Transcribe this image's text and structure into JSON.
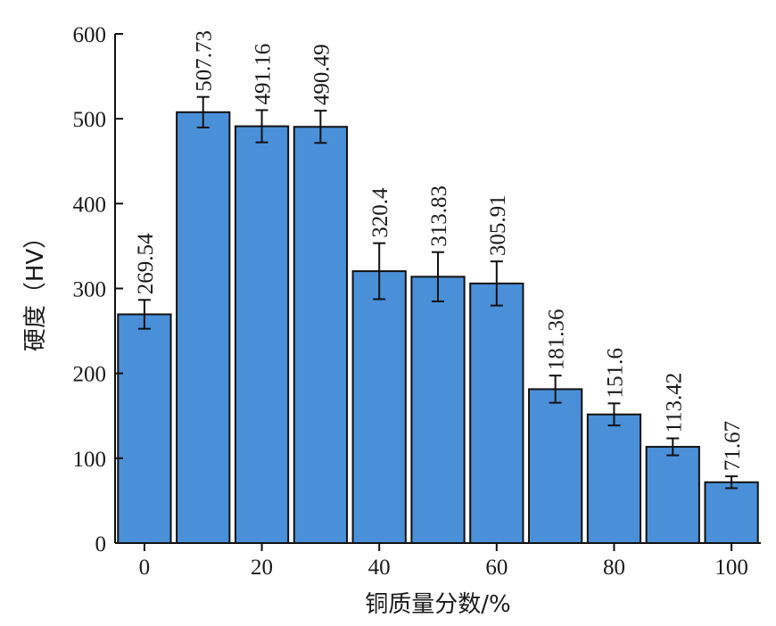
{
  "chart_data": {
    "type": "bar",
    "xlabel": "铜质量分数/%",
    "ylabel": "硬度（HV）",
    "x": [
      0,
      10,
      20,
      30,
      40,
      50,
      60,
      70,
      80,
      90,
      100
    ],
    "values": [
      269.54,
      507.73,
      491.16,
      490.49,
      320.4,
      313.83,
      305.91,
      181.36,
      151.6,
      113.42,
      71.67
    ],
    "value_labels": [
      "269.54",
      "507.73",
      "491.16",
      "490.49",
      "320.4",
      "313.83",
      "305.91",
      "181.36",
      "151.6",
      "113.42",
      "71.67"
    ],
    "errors": [
      17,
      18,
      19,
      19,
      33,
      29,
      26,
      16,
      13,
      10,
      7
    ],
    "xticks": [
      0,
      20,
      40,
      60,
      80,
      100
    ],
    "yticks": [
      0,
      100,
      200,
      300,
      400,
      500,
      600
    ],
    "ylim": [
      0,
      600
    ],
    "xlim": [
      -5,
      105
    ],
    "grid": false,
    "bar_color": "#4a90d9"
  }
}
